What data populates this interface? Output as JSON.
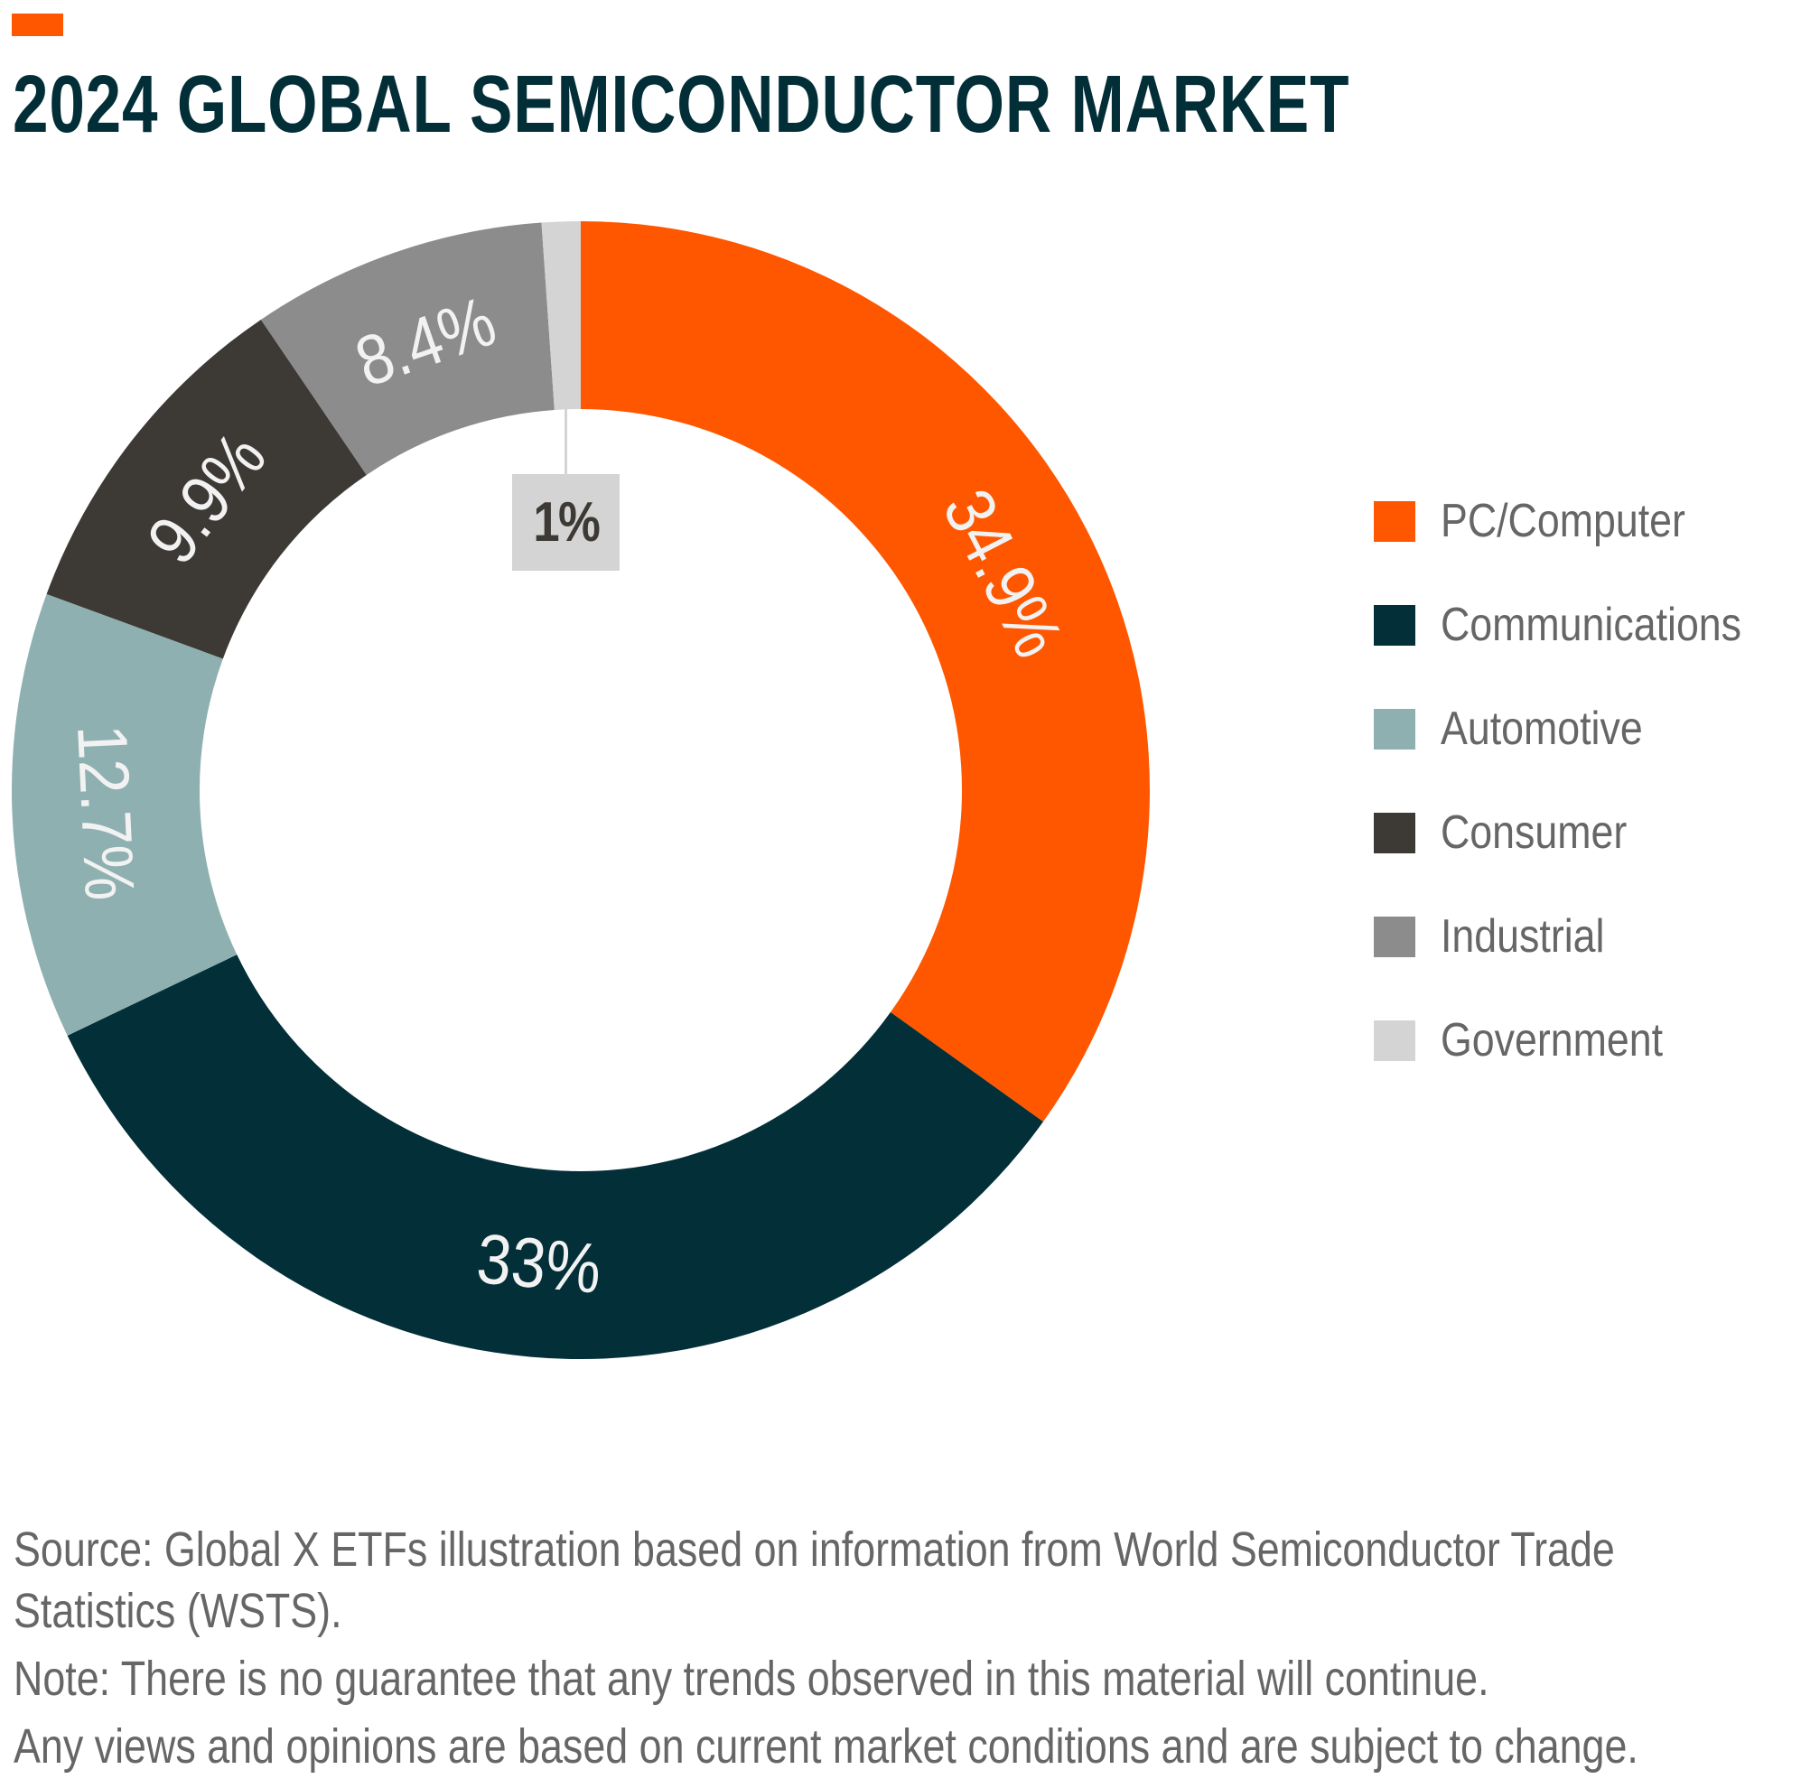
{
  "header": {
    "accent_color": "#ff5700",
    "title": "2024 GLOBAL SEMICONDUCTOR MARKET"
  },
  "chart_data": {
    "type": "pie",
    "subtype": "donut",
    "title": "2024 GLOBAL SEMICONDUCTOR MARKET",
    "unit": "%",
    "start_angle": "12 o'clock, clockwise",
    "categories": [
      "PC/Computer",
      "Communications",
      "Automotive",
      "Consumer",
      "Industrial",
      "Government"
    ],
    "values": [
      34.9,
      33,
      12.7,
      9.9,
      8.4,
      1
    ],
    "labels": [
      "34.9%",
      "33%",
      "12.7%",
      "9.9%",
      "8.4%",
      "1%"
    ],
    "colors": [
      "#ff5700",
      "#022f38",
      "#8fb0b0",
      "#3d3a36",
      "#8c8c8c",
      "#d4d4d4"
    ],
    "legend_position": "right",
    "callouts": [
      {
        "category": "Government",
        "label": "1%"
      }
    ]
  },
  "legend": {
    "items": [
      {
        "label": "PC/Computer",
        "color": "#ff5700"
      },
      {
        "label": "Communications",
        "color": "#022f38"
      },
      {
        "label": "Automotive",
        "color": "#8fb0b0"
      },
      {
        "label": "Consumer",
        "color": "#3d3a36"
      },
      {
        "label": "Industrial",
        "color": "#8c8c8c"
      },
      {
        "label": "Government",
        "color": "#d4d4d4"
      }
    ]
  },
  "footnotes": {
    "lines": [
      "Source: Global X ETFs illustration based on information from World Semiconductor Trade",
      "Statistics (WSTS).",
      "Note: There is no guarantee that any trends observed in this material will continue.",
      "Any views and opinions are based on current market conditions and are subject to change."
    ]
  }
}
